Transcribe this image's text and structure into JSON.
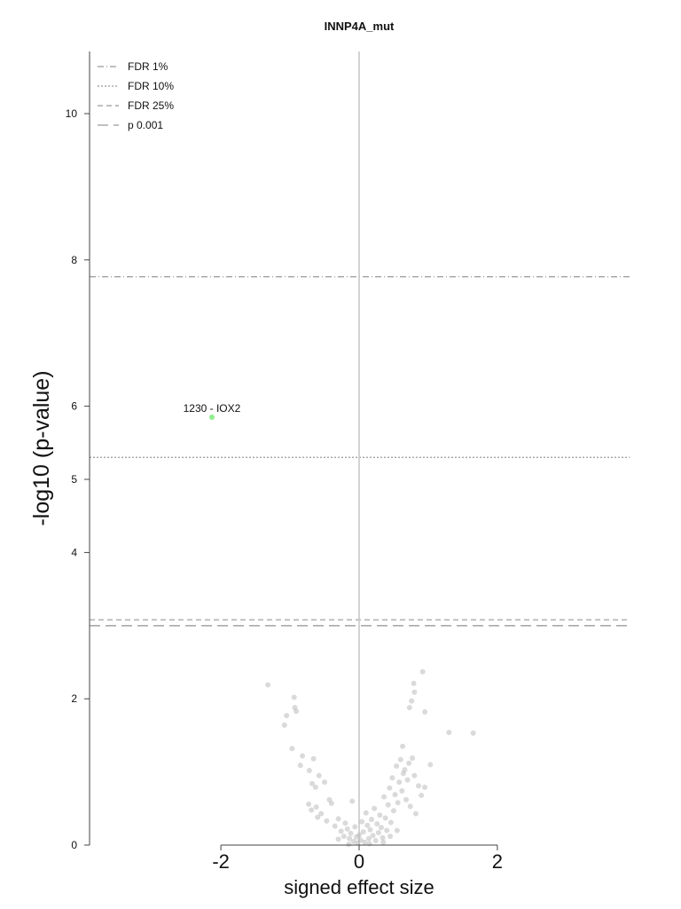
{
  "chart_data": {
    "type": "scatter",
    "title": "INNP4A_mut",
    "xlabel": "signed effect size",
    "ylabel": "-log10 (p-value)",
    "xlim": [
      -4,
      4
    ],
    "ylim": [
      0,
      10.85
    ],
    "x_ticks": [
      -2,
      0,
      2
    ],
    "x_tick_labels": [
      "-2",
      "0",
      "2"
    ],
    "y_ticks": [
      0,
      2,
      4,
      5,
      6,
      8,
      10
    ],
    "y_tick_labels": [
      "0",
      "2",
      "4",
      "5",
      "6",
      "8",
      "10"
    ],
    "grid": false,
    "legend_position": "top-left",
    "legend": [
      {
        "label": "FDR 1%",
        "style": "dashdot"
      },
      {
        "label": "FDR 10%",
        "style": "dotted"
      },
      {
        "label": "FDR 25%",
        "style": "dashed"
      },
      {
        "label": "p 0.001",
        "style": "longdash"
      }
    ],
    "thresholds": [
      {
        "name": "FDR 1%",
        "y": 7.77
      },
      {
        "name": "FDR 10%",
        "y": 5.3
      },
      {
        "name": "FDR 25%",
        "y": 3.08
      },
      {
        "name": "p 0.001",
        "y": 3.0
      }
    ],
    "zero_line_x": 0,
    "highlight": {
      "label": "1230 - IOX2",
      "x": -2.13,
      "y": 5.85,
      "color": "#90ee90"
    },
    "point_color": "#bbbbbb",
    "points": [
      {
        "x": -1.32,
        "y": 2.19
      },
      {
        "x": -1.05,
        "y": 1.77
      },
      {
        "x": -1.08,
        "y": 1.64
      },
      {
        "x": -0.94,
        "y": 2.02
      },
      {
        "x": -0.93,
        "y": 1.88
      },
      {
        "x": -0.91,
        "y": 1.83
      },
      {
        "x": -0.97,
        "y": 1.32
      },
      {
        "x": -0.85,
        "y": 1.09
      },
      {
        "x": -0.82,
        "y": 1.22
      },
      {
        "x": -0.66,
        "y": 1.18
      },
      {
        "x": -0.72,
        "y": 1.02
      },
      {
        "x": -0.68,
        "y": 0.84
      },
      {
        "x": -0.63,
        "y": 0.79
      },
      {
        "x": -0.58,
        "y": 0.95
      },
      {
        "x": -0.5,
        "y": 0.86
      },
      {
        "x": -0.73,
        "y": 0.56
      },
      {
        "x": -0.69,
        "y": 0.48
      },
      {
        "x": -0.62,
        "y": 0.52
      },
      {
        "x": -0.6,
        "y": 0.38
      },
      {
        "x": -0.55,
        "y": 0.43
      },
      {
        "x": -0.47,
        "y": 0.33
      },
      {
        "x": -0.43,
        "y": 0.62
      },
      {
        "x": -0.4,
        "y": 0.57
      },
      {
        "x": -0.35,
        "y": 0.26
      },
      {
        "x": -0.3,
        "y": 0.36
      },
      {
        "x": -0.26,
        "y": 0.19
      },
      {
        "x": -0.22,
        "y": 0.12
      },
      {
        "x": -0.2,
        "y": 0.3
      },
      {
        "x": -0.17,
        "y": 0.22
      },
      {
        "x": -0.14,
        "y": 0.09
      },
      {
        "x": -0.12,
        "y": 0.16
      },
      {
        "x": -0.1,
        "y": 0.6
      },
      {
        "x": -0.08,
        "y": 0.05
      },
      {
        "x": -0.06,
        "y": 0.25
      },
      {
        "x": -0.04,
        "y": 0.11
      },
      {
        "x": -0.02,
        "y": 0.03
      },
      {
        "x": 0.0,
        "y": 0.14
      },
      {
        "x": 0.02,
        "y": 0.07
      },
      {
        "x": 0.04,
        "y": 0.32
      },
      {
        "x": 0.06,
        "y": 0.18
      },
      {
        "x": 0.08,
        "y": 0.04
      },
      {
        "x": 0.1,
        "y": 0.44
      },
      {
        "x": 0.12,
        "y": 0.27
      },
      {
        "x": 0.14,
        "y": 0.09
      },
      {
        "x": 0.16,
        "y": 0.21
      },
      {
        "x": 0.18,
        "y": 0.35
      },
      {
        "x": 0.2,
        "y": 0.13
      },
      {
        "x": 0.22,
        "y": 0.5
      },
      {
        "x": 0.24,
        "y": 0.06
      },
      {
        "x": 0.26,
        "y": 0.29
      },
      {
        "x": 0.28,
        "y": 0.17
      },
      {
        "x": 0.3,
        "y": 0.41
      },
      {
        "x": 0.32,
        "y": 0.24
      },
      {
        "x": 0.34,
        "y": 0.1
      },
      {
        "x": 0.36,
        "y": 0.66
      },
      {
        "x": 0.38,
        "y": 0.37
      },
      {
        "x": 0.4,
        "y": 0.2
      },
      {
        "x": 0.42,
        "y": 0.55
      },
      {
        "x": 0.44,
        "y": 0.78
      },
      {
        "x": 0.46,
        "y": 0.31
      },
      {
        "x": 0.48,
        "y": 0.92
      },
      {
        "x": 0.5,
        "y": 0.47
      },
      {
        "x": 0.52,
        "y": 0.69
      },
      {
        "x": 0.54,
        "y": 1.08
      },
      {
        "x": 0.56,
        "y": 0.58
      },
      {
        "x": 0.58,
        "y": 0.86
      },
      {
        "x": 0.6,
        "y": 1.17
      },
      {
        "x": 0.62,
        "y": 0.74
      },
      {
        "x": 0.64,
        "y": 0.98
      },
      {
        "x": 0.66,
        "y": 1.03
      },
      {
        "x": 0.68,
        "y": 0.62
      },
      {
        "x": 0.7,
        "y": 0.89
      },
      {
        "x": 0.72,
        "y": 1.12
      },
      {
        "x": 0.74,
        "y": 0.53
      },
      {
        "x": 0.77,
        "y": 1.19
      },
      {
        "x": 0.8,
        "y": 0.95
      },
      {
        "x": 0.82,
        "y": 0.43
      },
      {
        "x": 0.86,
        "y": 0.81
      },
      {
        "x": 0.9,
        "y": 0.68
      },
      {
        "x": 0.95,
        "y": 0.79
      },
      {
        "x": 0.63,
        "y": 1.35
      },
      {
        "x": 0.73,
        "y": 1.88
      },
      {
        "x": 0.76,
        "y": 1.97
      },
      {
        "x": 0.79,
        "y": 2.21
      },
      {
        "x": 0.8,
        "y": 2.09
      },
      {
        "x": 0.92,
        "y": 2.37
      },
      {
        "x": 0.95,
        "y": 1.82
      },
      {
        "x": 1.03,
        "y": 1.1
      },
      {
        "x": 1.3,
        "y": 1.54
      },
      {
        "x": 1.65,
        "y": 1.53
      },
      {
        "x": 0.15,
        "y": 0.02
      },
      {
        "x": -0.15,
        "y": 0.01
      },
      {
        "x": 0.35,
        "y": 0.04
      },
      {
        "x": -0.3,
        "y": 0.08
      },
      {
        "x": 0.45,
        "y": 0.12
      },
      {
        "x": 0.55,
        "y": 0.2
      }
    ]
  }
}
